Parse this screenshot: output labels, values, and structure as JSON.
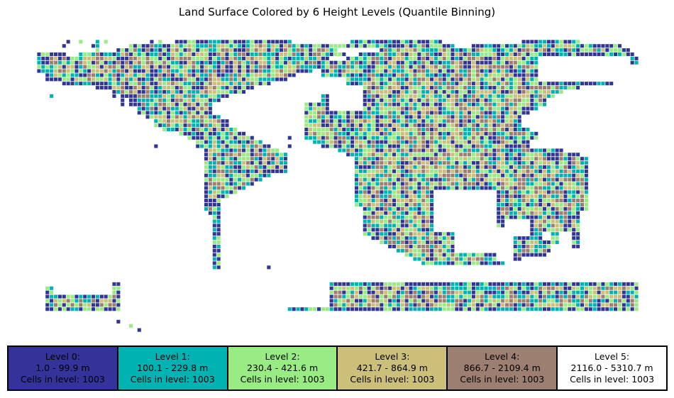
{
  "title": "Land Surface Colored by 6 Height Levels (Quantile Binning)",
  "map": {
    "cols": 144,
    "rows": 72,
    "land_rows": [
      {
        "r": 1,
        "s": [
          [
            34,
            61
          ],
          [
            75,
            97
          ],
          [
            116,
            130
          ]
        ]
      },
      {
        "r": 2,
        "s": [
          [
            22,
            70
          ],
          [
            70,
            100
          ],
          [
            104,
            140
          ]
        ]
      },
      {
        "r": 3,
        "s": [
          [
            19,
            72
          ],
          [
            82,
            142
          ]
        ]
      },
      {
        "r": 4,
        "s": [
          [
            0,
            6
          ],
          [
            10,
            74
          ],
          [
            77,
            143
          ]
        ]
      },
      {
        "r": 5,
        "s": [
          [
            0,
            70
          ],
          [
            74,
            144
          ]
        ]
      },
      {
        "r": 6,
        "s": [
          [
            0,
            68
          ],
          [
            66,
            144
          ]
        ]
      },
      {
        "r": 7,
        "s": [
          [
            0,
            68
          ],
          [
            68,
            144
          ]
        ]
      },
      {
        "r": 8,
        "s": [
          [
            0,
            66
          ],
          [
            68,
            142
          ]
        ]
      },
      {
        "r": 9,
        "s": [
          [
            2,
            62
          ],
          [
            68,
            142
          ]
        ]
      },
      {
        "r": 10,
        "s": [
          [
            2,
            60
          ],
          [
            68,
            140
          ]
        ]
      },
      {
        "r": 11,
        "s": [
          [
            6,
            56
          ],
          [
            68,
            138
          ]
        ]
      },
      {
        "r": 12,
        "s": [
          [
            14,
            52
          ],
          [
            68,
            130
          ]
        ]
      },
      {
        "r": 13,
        "s": [
          [
            18,
            50
          ],
          [
            68,
            126
          ]
        ]
      },
      {
        "r": 14,
        "s": [
          [
            20,
            46
          ],
          [
            66,
            124
          ]
        ]
      },
      {
        "r": 15,
        "s": [
          [
            22,
            44
          ],
          [
            64,
            122
          ]
        ]
      },
      {
        "r": 16,
        "s": [
          [
            22,
            42
          ],
          [
            64,
            122
          ]
        ]
      },
      {
        "r": 17,
        "s": [
          [
            24,
            42
          ],
          [
            64,
            120
          ]
        ]
      },
      {
        "r": 18,
        "s": [
          [
            24,
            42
          ],
          [
            64,
            118
          ]
        ]
      },
      {
        "r": 19,
        "s": [
          [
            26,
            44
          ],
          [
            64,
            116
          ]
        ]
      },
      {
        "r": 20,
        "s": [
          [
            28,
            46
          ],
          [
            64,
            116
          ]
        ]
      },
      {
        "r": 21,
        "s": [
          [
            28,
            46
          ],
          [
            64,
            116
          ]
        ]
      },
      {
        "r": 22,
        "s": [
          [
            30,
            48
          ],
          [
            64,
            118
          ]
        ]
      },
      {
        "r": 23,
        "s": [
          [
            34,
            50
          ],
          [
            64,
            120
          ]
        ]
      },
      {
        "r": 24,
        "s": [
          [
            36,
            52
          ],
          [
            64,
            120
          ]
        ]
      },
      {
        "r": 25,
        "s": [
          [
            38,
            54
          ],
          [
            66,
            118
          ]
        ]
      },
      {
        "r": 26,
        "s": [
          [
            38,
            56
          ],
          [
            68,
            118
          ]
        ]
      },
      {
        "r": 27,
        "s": [
          [
            40,
            58
          ],
          [
            72,
            126
          ]
        ]
      },
      {
        "r": 28,
        "s": [
          [
            40,
            60
          ],
          [
            74,
            130
          ]
        ]
      },
      {
        "r": 29,
        "s": [
          [
            40,
            60
          ],
          [
            76,
            132
          ]
        ]
      },
      {
        "r": 30,
        "s": [
          [
            40,
            60
          ],
          [
            76,
            136
          ]
        ]
      },
      {
        "r": 31,
        "s": [
          [
            40,
            60
          ],
          [
            76,
            138
          ]
        ]
      },
      {
        "r": 32,
        "s": [
          [
            40,
            58
          ],
          [
            76,
            138
          ]
        ]
      },
      {
        "r": 33,
        "s": [
          [
            40,
            56
          ],
          [
            76,
            138
          ]
        ]
      },
      {
        "r": 34,
        "s": [
          [
            40,
            54
          ],
          [
            76,
            138
          ]
        ]
      },
      {
        "r": 35,
        "s": [
          [
            40,
            52
          ],
          [
            76,
            138
          ]
        ]
      },
      {
        "r": 36,
        "s": [
          [
            40,
            50
          ],
          [
            76,
            138
          ]
        ]
      },
      {
        "r": 37,
        "s": [
          [
            40,
            48
          ],
          [
            76,
            136
          ]
        ]
      },
      {
        "r": 38,
        "s": [
          [
            40,
            46
          ],
          [
            76,
            136
          ]
        ]
      },
      {
        "r": 39,
        "s": [
          [
            40,
            44
          ],
          [
            76,
            136
          ]
        ]
      },
      {
        "r": 40,
        "s": [
          [
            40,
            44
          ],
          [
            76,
            134
          ]
        ]
      },
      {
        "r": 41,
        "s": [
          [
            40,
            44
          ],
          [
            78,
            132
          ]
        ]
      },
      {
        "r": 42,
        "s": [
          [
            41,
            44
          ],
          [
            78,
            130
          ]
        ]
      },
      {
        "r": 43,
        "s": [
          [
            42,
            44
          ],
          [
            78,
            130
          ]
        ]
      },
      {
        "r": 44,
        "s": [
          [
            42,
            44
          ],
          [
            78,
            130
          ]
        ]
      },
      {
        "r": 45,
        "s": [
          [
            42,
            44
          ],
          [
            78,
            130
          ]
        ]
      },
      {
        "r": 46,
        "s": [
          [
            42,
            44
          ],
          [
            78,
            130
          ]
        ]
      },
      {
        "r": 47,
        "s": [
          [
            42,
            44
          ],
          [
            78,
            130
          ]
        ]
      },
      {
        "r": 48,
        "s": [
          [
            42,
            44
          ],
          [
            80,
            130
          ]
        ]
      },
      {
        "r": 49,
        "s": [
          [
            42,
            44
          ],
          [
            82,
            130
          ]
        ]
      },
      {
        "r": 50,
        "s": [
          [
            42,
            44
          ],
          [
            84,
            130
          ]
        ]
      },
      {
        "r": 51,
        "s": [
          [
            42,
            44
          ],
          [
            86,
            126
          ]
        ]
      },
      {
        "r": 52,
        "s": [
          [
            42,
            44
          ],
          [
            88,
            122
          ]
        ]
      },
      {
        "r": 53,
        "s": [
          [
            42,
            44
          ],
          [
            90,
            116
          ]
        ]
      },
      {
        "r": 54,
        "s": [
          [
            42,
            44
          ],
          [
            92,
            112
          ]
        ]
      },
      {
        "r": 55,
        "s": [
          [
            42,
            44
          ]
        ]
      },
      {
        "r": 56,
        "s": [
          [
            42,
            44
          ]
        ]
      },
      {
        "r": 57,
        "s": [
          [
            40,
            48
          ]
        ]
      },
      {
        "r": 58,
        "s": [
          [
            40,
            52
          ]
        ]
      },
      {
        "r": 59,
        "s": [
          [
            2,
            60
          ],
          [
            60,
            144
          ]
        ]
      },
      {
        "r": 60,
        "s": [
          [
            2,
            70
          ],
          [
            70,
            144
          ]
        ]
      },
      {
        "r": 61,
        "s": [
          [
            2,
            72
          ],
          [
            72,
            144
          ]
        ]
      },
      {
        "r": 62,
        "s": [
          [
            2,
            72
          ],
          [
            72,
            144
          ]
        ]
      },
      {
        "r": 63,
        "s": [
          [
            2,
            72
          ],
          [
            72,
            144
          ]
        ]
      },
      {
        "r": 64,
        "s": [
          [
            2,
            72
          ],
          [
            72,
            144
          ]
        ]
      },
      {
        "r": 65,
        "s": [
          [
            2,
            72
          ],
          [
            72,
            144
          ]
        ]
      }
    ],
    "land_cells": [
      [
        6,
        2
      ],
      [
        6,
        4
      ],
      [
        7,
        1
      ],
      [
        10,
        1
      ],
      [
        11,
        0
      ],
      [
        13,
        2
      ],
      [
        14,
        1
      ],
      [
        14,
        4
      ],
      [
        10,
        5
      ],
      [
        11,
        7
      ],
      [
        15,
        4
      ],
      [
        14,
        2
      ],
      [
        16,
        1
      ],
      [
        14,
        3
      ],
      [
        28,
        26
      ],
      [
        24,
        14
      ],
      [
        24,
        18
      ],
      [
        20,
        16
      ],
      [
        20,
        15
      ],
      [
        18,
        14
      ],
      [
        19,
        4
      ],
      [
        14,
        5
      ],
      [
        3,
        14
      ],
      [
        20,
        3
      ],
      [
        22,
        5
      ],
      [
        46,
        4
      ],
      [
        45,
        7
      ],
      [
        47,
        9
      ],
      [
        44,
        10
      ],
      [
        46,
        11
      ],
      [
        45,
        12
      ],
      [
        58,
        30
      ],
      [
        58,
        32
      ],
      [
        59,
        32
      ],
      [
        59,
        31
      ],
      [
        57,
        27
      ],
      [
        60,
        24
      ],
      [
        60,
        26
      ],
      [
        36,
        66
      ],
      [
        30,
        66
      ],
      [
        19,
        68
      ],
      [
        22,
        69
      ],
      [
        24,
        70
      ],
      [
        26,
        6
      ],
      [
        27,
        1
      ],
      [
        28,
        0
      ],
      [
        29,
        1
      ],
      [
        29,
        2
      ],
      [
        30,
        0
      ],
      [
        30,
        4
      ],
      [
        31,
        3
      ],
      [
        32,
        5
      ],
      [
        33,
        1
      ],
      [
        36,
        2
      ],
      [
        34,
        6
      ],
      [
        35,
        7
      ],
      [
        36,
        8
      ],
      [
        37,
        9
      ],
      [
        38,
        10
      ],
      [
        39,
        11
      ],
      [
        40,
        12
      ],
      [
        45,
        60
      ],
      [
        46,
        59
      ],
      [
        50,
        56
      ],
      [
        53,
        57
      ],
      [
        54,
        56
      ],
      [
        55,
        55
      ]
    ],
    "cut_rects": [
      [
        0,
        0,
        144,
        1
      ],
      [
        0,
        0,
        34,
        1
      ],
      [
        4,
        38,
        8,
        24
      ],
      [
        5,
        40,
        11,
        22
      ],
      [
        7,
        43,
        11,
        19
      ],
      [
        60,
        10,
        10,
        4
      ],
      [
        62,
        12,
        6,
        4
      ],
      [
        27,
        40,
        8,
        12
      ],
      [
        31,
        40,
        4,
        4
      ],
      [
        33,
        46,
        5,
        30
      ],
      [
        34,
        44,
        6,
        32
      ],
      [
        40,
        46,
        2,
        30
      ],
      [
        65,
        30,
        6,
        18
      ],
      [
        64,
        33,
        10,
        14
      ],
      [
        58,
        38,
        6,
        4
      ],
      [
        56,
        47,
        4,
        6
      ],
      [
        58,
        41,
        3,
        4
      ],
      [
        95,
        37,
        15,
        10
      ],
      [
        96,
        39,
        10,
        6
      ],
      [
        100,
        44,
        10,
        8
      ],
      [
        110,
        46,
        4,
        8
      ],
      [
        112,
        44,
        6,
        4
      ],
      [
        70,
        12,
        8,
        6
      ],
      [
        70,
        10,
        4,
        8
      ],
      [
        20,
        58,
        40,
        10
      ],
      [
        24,
        56,
        36,
        10
      ],
      [
        55,
        59,
        15,
        6
      ],
      [
        58,
        58,
        6,
        4
      ],
      [
        120,
        5,
        22,
        6
      ],
      [
        124,
        7,
        20,
        4
      ],
      [
        4,
        46,
        19,
        13
      ],
      [
        8,
        48,
        10,
        12
      ],
      [
        0,
        32,
        6,
        14
      ],
      [
        0,
        44,
        8,
        16
      ],
      [
        125,
        47,
        3,
        4
      ],
      [
        121,
        47,
        2,
        2
      ],
      [
        123,
        50,
        3,
        2
      ],
      [
        132,
        26,
        10,
        20
      ],
      [
        136,
        22,
        8,
        6
      ],
      [
        140,
        28,
        6,
        10
      ]
    ],
    "colors": [
      "#313695",
      "#00b3b3",
      "#99eb83",
      "#ccbf7a",
      "#9d7f72",
      "#ffffff"
    ],
    "seed": 7
  },
  "legend": [
    {
      "label": "Level 0:",
      "range": "1.0 - 99.9 m",
      "count": "Cells in level: 1003",
      "color": "#333399"
    },
    {
      "label": "Level 1:",
      "range": "100.1 - 229.8 m",
      "count": "Cells in level: 1003",
      "color": "#00b3b3"
    },
    {
      "label": "Level 2:",
      "range": "230.4 - 421.6 m",
      "count": "Cells in level: 1003",
      "color": "#99eb83"
    },
    {
      "label": "Level 3:",
      "range": "421.7 - 864.9 m",
      "count": "Cells in level: 1003",
      "color": "#ccbf7a"
    },
    {
      "label": "Level 4:",
      "range": "866.7 - 2109.4 m",
      "count": "Cells in level: 1003",
      "color": "#9d7f72"
    },
    {
      "label": "Level 5:",
      "range": "2116.0 - 5310.7 m",
      "count": "Cells in level: 1003",
      "color": "#ffffff"
    }
  ]
}
